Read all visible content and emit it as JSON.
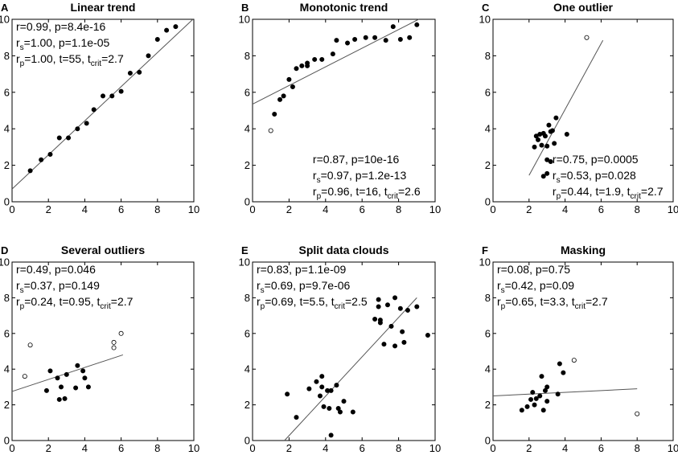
{
  "figure": {
    "axis_ticks": [
      0,
      2,
      4,
      6,
      8,
      10
    ]
  },
  "chart_data": [
    {
      "type": "scatter",
      "letter": "A",
      "title": "Linear trend",
      "xlim": [
        0,
        10
      ],
      "ylim": [
        0,
        10
      ],
      "stats": [
        {
          "main": "r=0.99, p=8.4e-16",
          "base": "",
          "sub": "",
          "rest": ""
        },
        {
          "main": "",
          "base": "r",
          "sub": "s",
          "rest": "=1.00, p=1.1e-05"
        },
        {
          "main": "",
          "base": "r",
          "sub": "p",
          "rest": "=1.00, t=55, t",
          "sub2": "crit",
          "rest2": "=2.7"
        }
      ],
      "stats_position": "top-left",
      "fit": {
        "x": [
          0,
          9.95
        ],
        "y": [
          0.7,
          10
        ]
      },
      "points": [
        {
          "x": 1,
          "y": 1.7,
          "outlier": false
        },
        {
          "x": 1.6,
          "y": 2.3,
          "outlier": false
        },
        {
          "x": 2.1,
          "y": 2.6,
          "outlier": false
        },
        {
          "x": 2.6,
          "y": 3.5,
          "outlier": false
        },
        {
          "x": 3.1,
          "y": 3.5,
          "outlier": false
        },
        {
          "x": 3.6,
          "y": 4.0,
          "outlier": false
        },
        {
          "x": 4.1,
          "y": 4.3,
          "outlier": false
        },
        {
          "x": 4.5,
          "y": 5.05,
          "outlier": false
        },
        {
          "x": 5,
          "y": 5.8,
          "outlier": false
        },
        {
          "x": 5.5,
          "y": 5.8,
          "outlier": false
        },
        {
          "x": 6,
          "y": 6.05,
          "outlier": false
        },
        {
          "x": 6.5,
          "y": 7.05,
          "outlier": false
        },
        {
          "x": 7,
          "y": 7.1,
          "outlier": false
        },
        {
          "x": 7.5,
          "y": 8.0,
          "outlier": false
        },
        {
          "x": 8,
          "y": 8.9,
          "outlier": false
        },
        {
          "x": 8.5,
          "y": 9.4,
          "outlier": false
        },
        {
          "x": 9,
          "y": 9.6,
          "outlier": false
        }
      ]
    },
    {
      "type": "scatter",
      "letter": "B",
      "title": "Monotonic trend",
      "xlim": [
        0,
        10
      ],
      "ylim": [
        0,
        10
      ],
      "stats": [
        {
          "main": "r=0.87, p=10e-16",
          "base": "",
          "sub": "",
          "rest": ""
        },
        {
          "main": "",
          "base": "r",
          "sub": "s",
          "rest": "=0.97, p=1.2e-13"
        },
        {
          "main": "",
          "base": "r",
          "sub": "p",
          "rest": "=0.96, t=16, t",
          "sub2": "crit",
          "rest2": "=2.6"
        }
      ],
      "stats_position": "bottom-right",
      "fit": {
        "x": [
          0,
          9.1
        ],
        "y": [
          5.35,
          10
        ]
      },
      "points": [
        {
          "x": 1.0,
          "y": 3.9,
          "outlier": true
        },
        {
          "x": 1.2,
          "y": 4.8,
          "outlier": false
        },
        {
          "x": 1.5,
          "y": 5.6,
          "outlier": false
        },
        {
          "x": 1.7,
          "y": 5.8,
          "outlier": false
        },
        {
          "x": 2.0,
          "y": 6.7,
          "outlier": false
        },
        {
          "x": 2.2,
          "y": 6.3,
          "outlier": false
        },
        {
          "x": 2.4,
          "y": 7.3,
          "outlier": false
        },
        {
          "x": 2.7,
          "y": 7.45,
          "outlier": false
        },
        {
          "x": 3.0,
          "y": 7.6,
          "outlier": false
        },
        {
          "x": 3.0,
          "y": 7.45,
          "outlier": false
        },
        {
          "x": 3.4,
          "y": 7.8,
          "outlier": false
        },
        {
          "x": 3.8,
          "y": 7.8,
          "outlier": false
        },
        {
          "x": 4.4,
          "y": 8.1,
          "outlier": false
        },
        {
          "x": 4.6,
          "y": 8.85,
          "outlier": false
        },
        {
          "x": 5.2,
          "y": 8.7,
          "outlier": false
        },
        {
          "x": 5.6,
          "y": 8.9,
          "outlier": false
        },
        {
          "x": 6.2,
          "y": 9.0,
          "outlier": false
        },
        {
          "x": 6.7,
          "y": 9.0,
          "outlier": false
        },
        {
          "x": 7.3,
          "y": 8.85,
          "outlier": false
        },
        {
          "x": 7.7,
          "y": 9.6,
          "outlier": false
        },
        {
          "x": 8.1,
          "y": 8.9,
          "outlier": false
        },
        {
          "x": 8.6,
          "y": 9.0,
          "outlier": false
        },
        {
          "x": 9.0,
          "y": 9.7,
          "outlier": false
        }
      ]
    },
    {
      "type": "scatter",
      "letter": "C",
      "title": "One outlier",
      "xlim": [
        0,
        10
      ],
      "ylim": [
        0,
        10
      ],
      "stats": [
        {
          "main": "r=0.75, p=0.0005",
          "base": "",
          "sub": "",
          "rest": ""
        },
        {
          "main": "",
          "base": "r",
          "sub": "s",
          "rest": "=0.53, p=0.028"
        },
        {
          "main": "",
          "base": "r",
          "sub": "p",
          "rest": "=0.44, t=1.9, t",
          "sub2": "crit",
          "rest2": "=2.7"
        }
      ],
      "stats_position": "bottom-right",
      "fit": {
        "x": [
          2.0,
          6.1
        ],
        "y": [
          1.45,
          8.85
        ]
      },
      "points": [
        {
          "x": 5.2,
          "y": 9.0,
          "outlier": true
        },
        {
          "x": 2.3,
          "y": 3.0,
          "outlier": false
        },
        {
          "x": 2.4,
          "y": 3.6,
          "outlier": false
        },
        {
          "x": 2.5,
          "y": 3.4,
          "outlier": false
        },
        {
          "x": 2.6,
          "y": 3.7,
          "outlier": false
        },
        {
          "x": 2.7,
          "y": 3.1,
          "outlier": false
        },
        {
          "x": 2.8,
          "y": 3.75,
          "outlier": false
        },
        {
          "x": 2.9,
          "y": 3.6,
          "outlier": false
        },
        {
          "x": 3.0,
          "y": 2.3,
          "outlier": false
        },
        {
          "x": 3.1,
          "y": 4.2,
          "outlier": false
        },
        {
          "x": 3.2,
          "y": 3.85,
          "outlier": false
        },
        {
          "x": 3.3,
          "y": 3.9,
          "outlier": false
        },
        {
          "x": 3.5,
          "y": 4.6,
          "outlier": false
        },
        {
          "x": 3.4,
          "y": 3.2,
          "outlier": false
        },
        {
          "x": 3.0,
          "y": 3.05,
          "outlier": false
        },
        {
          "x": 2.8,
          "y": 1.4,
          "outlier": false
        },
        {
          "x": 3.0,
          "y": 1.55,
          "outlier": false
        },
        {
          "x": 3.2,
          "y": 2.2,
          "outlier": false
        },
        {
          "x": 4.1,
          "y": 3.7,
          "outlier": false
        }
      ]
    },
    {
      "type": "scatter",
      "letter": "D",
      "title": "Several outliers",
      "xlim": [
        0,
        10
      ],
      "ylim": [
        0,
        10
      ],
      "stats": [
        {
          "main": "r=0.49, p=0.046",
          "base": "",
          "sub": "",
          "rest": ""
        },
        {
          "main": "",
          "base": "r",
          "sub": "s",
          "rest": "=0.37, p=0.149"
        },
        {
          "main": "",
          "base": "r",
          "sub": "p",
          "rest": "=0.24, t=0.95, t",
          "sub2": "crit",
          "rest2": "=2.7"
        }
      ],
      "stats_position": "top-left",
      "fit": {
        "x": [
          0,
          6.1
        ],
        "y": [
          2.75,
          4.8
        ]
      },
      "points": [
        {
          "x": 0.7,
          "y": 3.6,
          "outlier": true
        },
        {
          "x": 1.0,
          "y": 5.35,
          "outlier": true
        },
        {
          "x": 5.6,
          "y": 5.5,
          "outlier": true
        },
        {
          "x": 5.6,
          "y": 5.2,
          "outlier": true
        },
        {
          "x": 6.0,
          "y": 6.0,
          "outlier": true
        },
        {
          "x": 1.9,
          "y": 2.8,
          "outlier": false
        },
        {
          "x": 2.1,
          "y": 3.9,
          "outlier": false
        },
        {
          "x": 2.5,
          "y": 3.5,
          "outlier": false
        },
        {
          "x": 2.6,
          "y": 2.3,
          "outlier": false
        },
        {
          "x": 2.7,
          "y": 3.0,
          "outlier": false
        },
        {
          "x": 2.9,
          "y": 2.35,
          "outlier": false
        },
        {
          "x": 3.0,
          "y": 3.7,
          "outlier": false
        },
        {
          "x": 3.5,
          "y": 2.95,
          "outlier": false
        },
        {
          "x": 3.6,
          "y": 4.2,
          "outlier": false
        },
        {
          "x": 3.9,
          "y": 3.9,
          "outlier": false
        },
        {
          "x": 4.0,
          "y": 3.5,
          "outlier": false
        },
        {
          "x": 4.2,
          "y": 3.0,
          "outlier": false
        }
      ]
    },
    {
      "type": "scatter",
      "letter": "E",
      "title": "Split data clouds",
      "xlim": [
        0,
        10
      ],
      "ylim": [
        0,
        10
      ],
      "stats": [
        {
          "main": "r=0.83, p=1.1e-09",
          "base": "",
          "sub": "",
          "rest": ""
        },
        {
          "main": "",
          "base": "r",
          "sub": "s",
          "rest": "=0.69, p=9.7e-06"
        },
        {
          "main": "",
          "base": "r",
          "sub": "p",
          "rest": "=0.69, t=5.5, t",
          "sub2": "crit",
          "rest2": "=2.5"
        }
      ],
      "stats_position": "top-left",
      "fit": {
        "x": [
          1.75,
          9.0
        ],
        "y": [
          0,
          8.0
        ]
      },
      "points": [
        {
          "x": 1.9,
          "y": 2.6,
          "outlier": false
        },
        {
          "x": 2.4,
          "y": 1.3,
          "outlier": false
        },
        {
          "x": 3.1,
          "y": 2.9,
          "outlier": false
        },
        {
          "x": 3.5,
          "y": 3.3,
          "outlier": false
        },
        {
          "x": 3.7,
          "y": 2.5,
          "outlier": false
        },
        {
          "x": 3.8,
          "y": 3.6,
          "outlier": false
        },
        {
          "x": 3.8,
          "y": 3.0,
          "outlier": false
        },
        {
          "x": 4.1,
          "y": 2.8,
          "outlier": false
        },
        {
          "x": 3.9,
          "y": 1.9,
          "outlier": false
        },
        {
          "x": 4.2,
          "y": 1.8,
          "outlier": false
        },
        {
          "x": 4.3,
          "y": 2.8,
          "outlier": false
        },
        {
          "x": 4.6,
          "y": 3.1,
          "outlier": false
        },
        {
          "x": 4.7,
          "y": 1.8,
          "outlier": false
        },
        {
          "x": 4.8,
          "y": 1.6,
          "outlier": false
        },
        {
          "x": 5.0,
          "y": 2.2,
          "outlier": false
        },
        {
          "x": 5.5,
          "y": 1.6,
          "outlier": false
        },
        {
          "x": 4.3,
          "y": 0.3,
          "outlier": false
        },
        {
          "x": 6.9,
          "y": 7.9,
          "outlier": false
        },
        {
          "x": 6.9,
          "y": 7.5,
          "outlier": false
        },
        {
          "x": 6.7,
          "y": 6.8,
          "outlier": false
        },
        {
          "x": 7.0,
          "y": 6.75,
          "outlier": false
        },
        {
          "x": 7.0,
          "y": 6.6,
          "outlier": false
        },
        {
          "x": 7.2,
          "y": 5.4,
          "outlier": false
        },
        {
          "x": 7.4,
          "y": 7.6,
          "outlier": false
        },
        {
          "x": 7.6,
          "y": 6.4,
          "outlier": false
        },
        {
          "x": 7.8,
          "y": 8.0,
          "outlier": false
        },
        {
          "x": 7.8,
          "y": 5.3,
          "outlier": false
        },
        {
          "x": 8.1,
          "y": 7.4,
          "outlier": false
        },
        {
          "x": 8.2,
          "y": 6.1,
          "outlier": false
        },
        {
          "x": 8.3,
          "y": 5.5,
          "outlier": false
        },
        {
          "x": 8.5,
          "y": 7.3,
          "outlier": false
        },
        {
          "x": 9.0,
          "y": 7.5,
          "outlier": false
        },
        {
          "x": 9.6,
          "y": 5.9,
          "outlier": false
        }
      ]
    },
    {
      "type": "scatter",
      "letter": "F",
      "title": "Masking",
      "xlim": [
        0,
        10
      ],
      "ylim": [
        0,
        10
      ],
      "stats": [
        {
          "main": "r=0.08, p=0.75",
          "base": "",
          "sub": "",
          "rest": ""
        },
        {
          "main": "",
          "base": "r",
          "sub": "s",
          "rest": "=0.42, p=0.09"
        },
        {
          "main": "",
          "base": "r",
          "sub": "p",
          "rest": "=0.65, t=3.3, t",
          "sub2": "crit",
          "rest2": "=2.7"
        }
      ],
      "stats_position": "top-left",
      "fit": {
        "x": [
          0,
          8.0
        ],
        "y": [
          2.5,
          2.9
        ]
      },
      "points": [
        {
          "x": 4.5,
          "y": 4.5,
          "outlier": true
        },
        {
          "x": 8.0,
          "y": 1.5,
          "outlier": true
        },
        {
          "x": 1.6,
          "y": 1.7,
          "outlier": false
        },
        {
          "x": 1.9,
          "y": 1.9,
          "outlier": false
        },
        {
          "x": 2.1,
          "y": 2.3,
          "outlier": false
        },
        {
          "x": 2.2,
          "y": 2.7,
          "outlier": false
        },
        {
          "x": 2.3,
          "y": 2.0,
          "outlier": false
        },
        {
          "x": 2.4,
          "y": 2.35,
          "outlier": false
        },
        {
          "x": 2.6,
          "y": 2.5,
          "outlier": false
        },
        {
          "x": 2.7,
          "y": 3.6,
          "outlier": false
        },
        {
          "x": 2.8,
          "y": 1.7,
          "outlier": false
        },
        {
          "x": 2.9,
          "y": 2.8,
          "outlier": false
        },
        {
          "x": 3.0,
          "y": 3.0,
          "outlier": false
        },
        {
          "x": 3.0,
          "y": 2.2,
          "outlier": false
        },
        {
          "x": 3.6,
          "y": 2.6,
          "outlier": false
        },
        {
          "x": 3.7,
          "y": 4.3,
          "outlier": false
        },
        {
          "x": 3.9,
          "y": 3.8,
          "outlier": false
        }
      ]
    }
  ]
}
